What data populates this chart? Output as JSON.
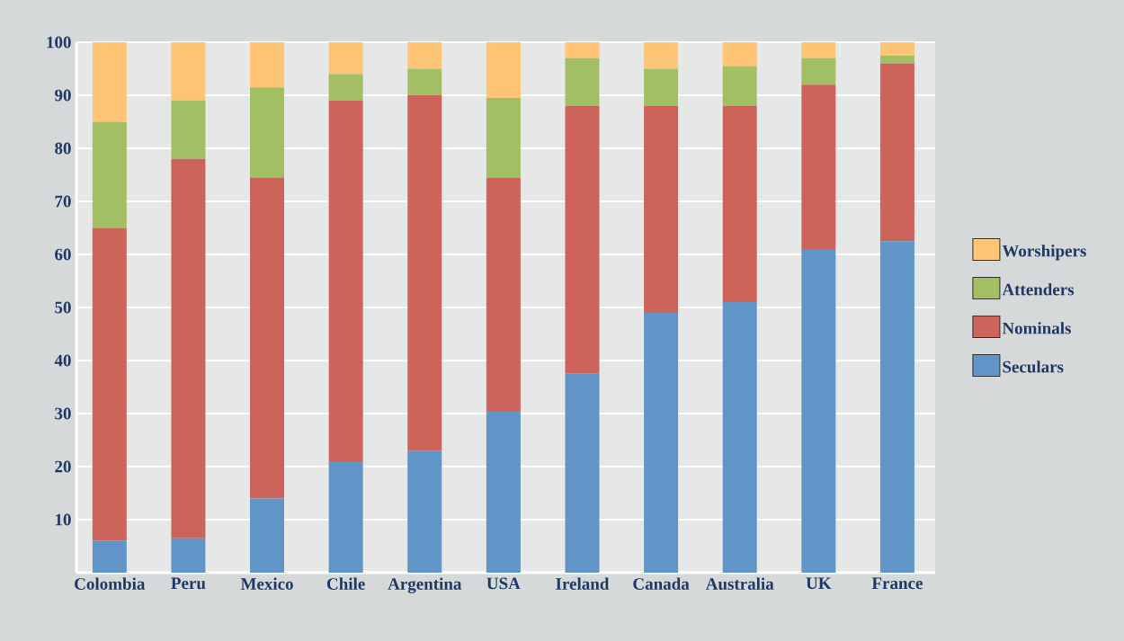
{
  "chart_data": {
    "type": "bar",
    "stacked": true,
    "categories": [
      "Colombia",
      "Peru",
      "Mexico",
      "Chile",
      "Argentina",
      "USA",
      "Ireland",
      "Canada",
      "Australia",
      "UK",
      "France"
    ],
    "series": [
      {
        "name": "Seculars",
        "color": "#6195c8",
        "values": [
          6,
          6.5,
          14,
          21,
          23,
          30.5,
          37.5,
          49,
          51,
          61,
          62.5
        ]
      },
      {
        "name": "Nominals",
        "color": "#cd645c",
        "values": [
          59,
          71.5,
          60.5,
          68,
          67,
          44,
          50.5,
          39,
          37,
          31,
          33.5
        ]
      },
      {
        "name": "Attenders",
        "color": "#a3bf63",
        "values": [
          20,
          11,
          17,
          5,
          5,
          15,
          9,
          7,
          7.5,
          5,
          1.5
        ]
      },
      {
        "name": "Worshipers",
        "color": "#fec576",
        "values": [
          15,
          11,
          8.5,
          6,
          5,
          10.5,
          3,
          5,
          4.5,
          3,
          2.5
        ]
      }
    ],
    "ylim": [
      0,
      100
    ],
    "yticks": [
      10,
      20,
      30,
      40,
      50,
      60,
      70,
      80,
      90,
      100
    ],
    "grid": "y",
    "legend": "right"
  }
}
